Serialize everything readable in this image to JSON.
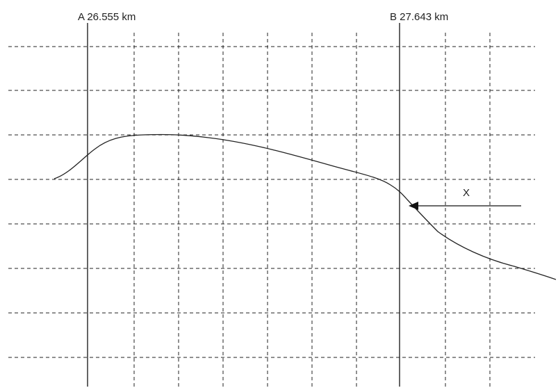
{
  "diagram": {
    "marker_a_label": "A 26.555 km",
    "marker_b_label": "B 27.643 km",
    "arrow_label": "X",
    "colors": {
      "background": "#ffffff",
      "grid": "#222222",
      "curve": "#222222",
      "markers": "#111111"
    },
    "grid_style": "dashed"
  }
}
